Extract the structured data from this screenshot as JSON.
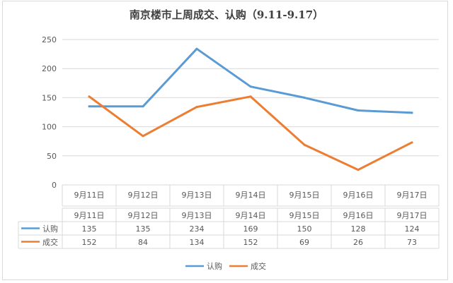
{
  "chart_data": {
    "type": "line",
    "title": "南京楼市上周成交、认购（9.11-9.17）",
    "categories": [
      "9月11日",
      "9月12日",
      "9月13日",
      "9月14日",
      "9月15日",
      "9月16日",
      "9月17日"
    ],
    "series": [
      {
        "name": "认购",
        "values": [
          135,
          135,
          234,
          169,
          150,
          128,
          124
        ],
        "color": "#5b9bd5"
      },
      {
        "name": "成交",
        "values": [
          152,
          84,
          134,
          152,
          69,
          26,
          73
        ],
        "color": "#ed7d31"
      }
    ],
    "ylim": [
      0,
      250
    ],
    "yticks": [
      0,
      50,
      100,
      150,
      200,
      250
    ],
    "grid": true,
    "legend": "bottom",
    "data_table": true
  }
}
